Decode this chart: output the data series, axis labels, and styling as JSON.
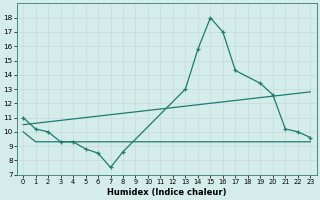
{
  "xlabel": "Humidex (Indice chaleur)",
  "xlim": [
    -0.5,
    23.5
  ],
  "ylim": [
    7,
    19
  ],
  "yticks": [
    7,
    8,
    9,
    10,
    11,
    12,
    13,
    14,
    15,
    16,
    17,
    18
  ],
  "xticks": [
    0,
    1,
    2,
    3,
    4,
    5,
    6,
    7,
    8,
    9,
    10,
    11,
    12,
    13,
    14,
    15,
    16,
    17,
    18,
    19,
    20,
    21,
    22,
    23
  ],
  "background_color": "#d4ecea",
  "grid_color": "#b8d8d8",
  "line_color": "#1e7b6e",
  "main_curve_x": [
    0,
    1,
    2,
    3,
    4,
    5,
    6,
    7,
    8,
    13,
    14,
    15,
    16,
    17,
    19,
    20,
    21,
    22,
    23
  ],
  "main_curve_y": [
    11.0,
    10.2,
    10.0,
    9.3,
    9.3,
    8.8,
    8.5,
    7.5,
    8.6,
    13.0,
    15.8,
    18.0,
    17.0,
    14.3,
    13.4,
    12.6,
    10.2,
    10.0,
    9.6
  ],
  "upper_line_x": [
    0,
    23
  ],
  "upper_line_y": [
    10.5,
    12.8
  ],
  "lower_line_x": [
    0,
    1,
    2,
    19,
    20,
    23
  ],
  "lower_line_y": [
    10.0,
    9.3,
    9.3,
    9.3,
    9.3,
    9.3
  ]
}
